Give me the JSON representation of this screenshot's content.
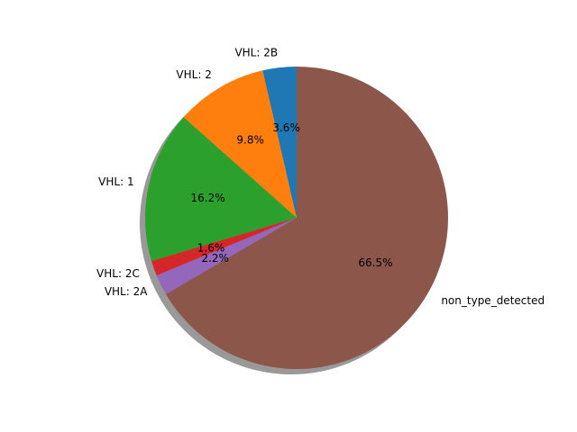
{
  "chart_data": {
    "type": "pie",
    "title": "",
    "start_angle_deg": 90,
    "counterclock": true,
    "shadow": true,
    "slices": [
      {
        "label": "VHL: 2B",
        "value": 3.6,
        "pct_label": "3.6%",
        "color": "#1f77b4"
      },
      {
        "label": "VHL: 2",
        "value": 9.8,
        "pct_label": "9.8%",
        "color": "#ff7f0e"
      },
      {
        "label": "VHL: 1",
        "value": 16.2,
        "pct_label": "16.2%",
        "color": "#2ca02c"
      },
      {
        "label": "VHL: 2C",
        "value": 1.6,
        "pct_label": "1.6%",
        "color": "#d62728"
      },
      {
        "label": "VHL: 2A",
        "value": 2.2,
        "pct_label": "2.2%",
        "color": "#9467bd"
      },
      {
        "label": "non_type_detected",
        "value": 66.5,
        "pct_label": "66.5%",
        "color": "#8c564b"
      }
    ]
  }
}
